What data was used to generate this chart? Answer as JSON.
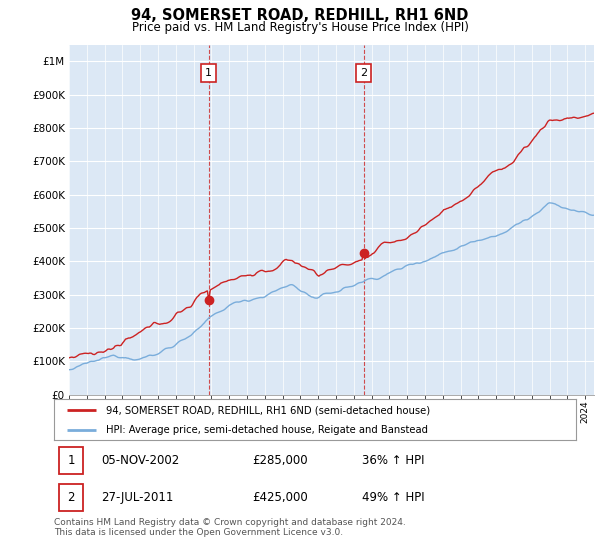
{
  "title": "94, SOMERSET ROAD, REDHILL, RH1 6ND",
  "subtitle": "Price paid vs. HM Land Registry's House Price Index (HPI)",
  "ylim": [
    0,
    1050000
  ],
  "yticks": [
    0,
    100000,
    200000,
    300000,
    400000,
    500000,
    600000,
    700000,
    800000,
    900000,
    1000000
  ],
  "ytick_labels": [
    "£0",
    "£100K",
    "£200K",
    "£300K",
    "£400K",
    "£500K",
    "£600K",
    "£700K",
    "£800K",
    "£900K",
    "£1M"
  ],
  "hpi_color": "#7aaddb",
  "price_color": "#cc2222",
  "marker1_year": 2002.85,
  "marker1_value": 285000,
  "marker2_year": 2011.55,
  "marker2_value": 425000,
  "legend_line1": "94, SOMERSET ROAD, REDHILL, RH1 6ND (semi-detached house)",
  "legend_line2": "HPI: Average price, semi-detached house, Reigate and Banstead",
  "table_row1": [
    "1",
    "05-NOV-2002",
    "£285,000",
    "36% ↑ HPI"
  ],
  "table_row2": [
    "2",
    "27-JUL-2011",
    "£425,000",
    "49% ↑ HPI"
  ],
  "footnote": "Contains HM Land Registry data © Crown copyright and database right 2024.\nThis data is licensed under the Open Government Licence v3.0.",
  "background_color": "#ffffff",
  "plot_bg_color": "#dce8f5",
  "xstart": 1995,
  "xend": 2024.5
}
